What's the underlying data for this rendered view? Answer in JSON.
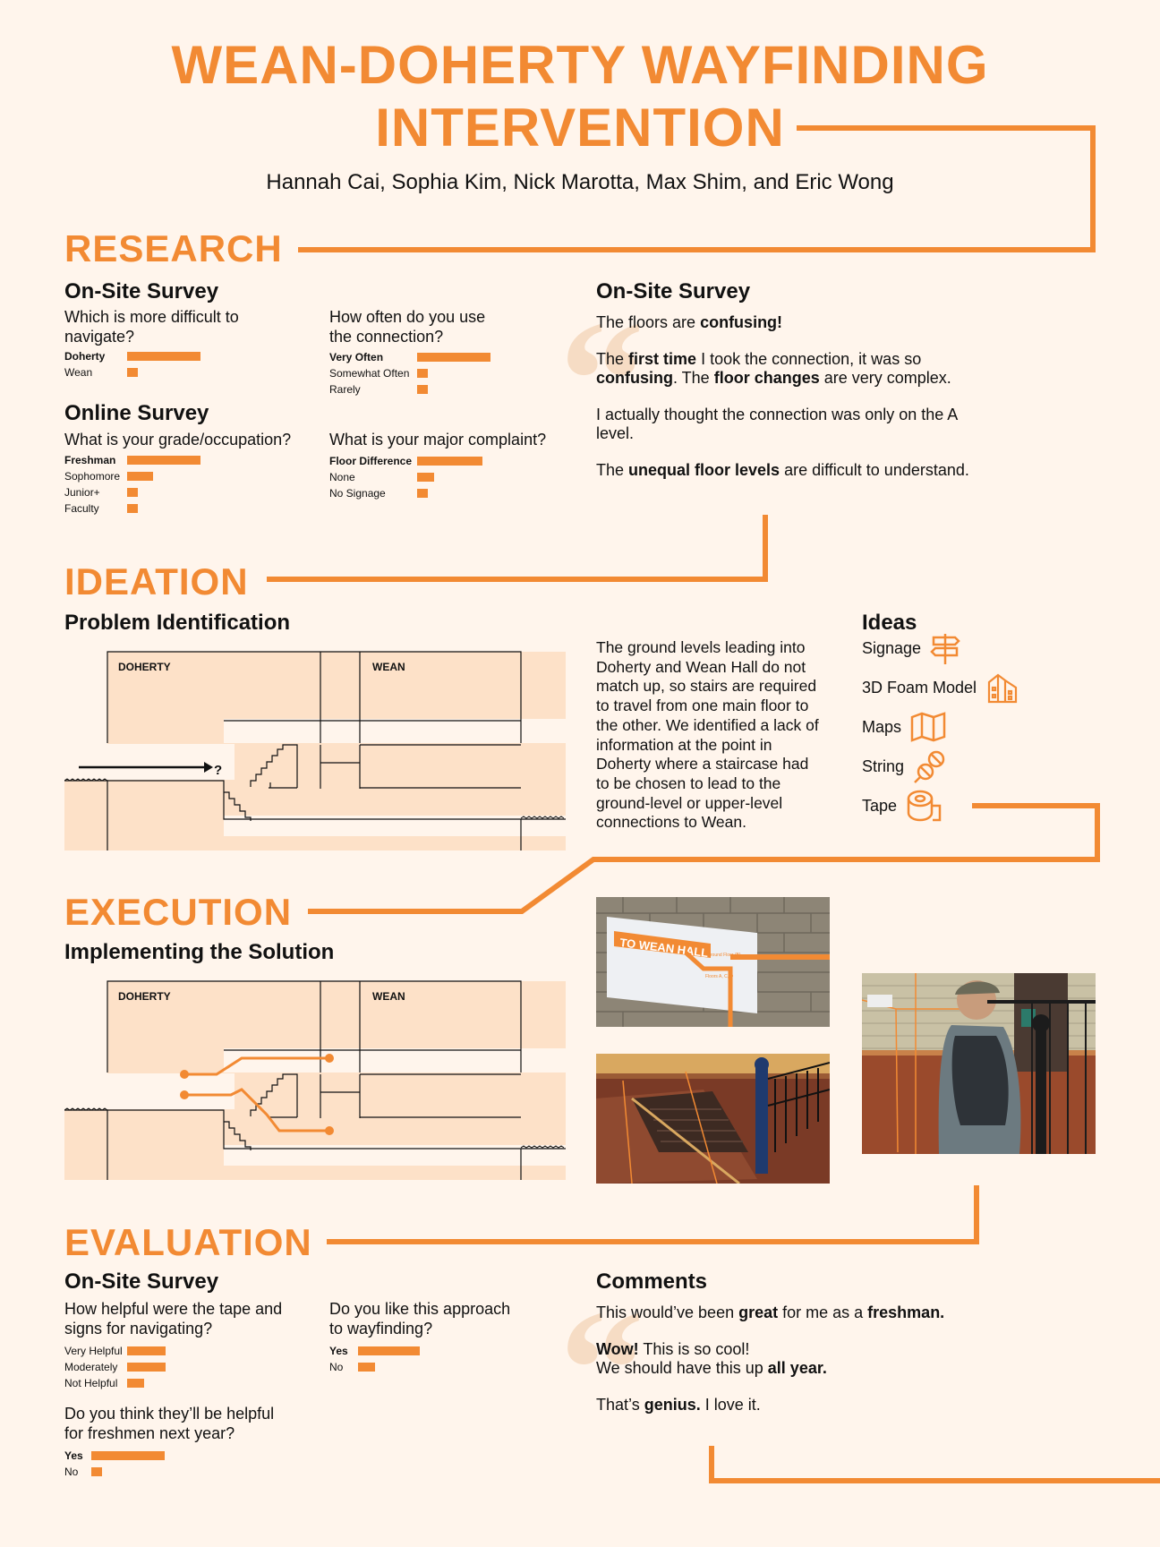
{
  "header": {
    "title_line1": "WEAN-DOHERTY WAYFINDING",
    "title_line2": "INTERVENTION",
    "authors": "Hannah Cai, Sophia Kim, Nick Marotta, Max Shim, and Eric Wong"
  },
  "colors": {
    "accent": "#f28a33",
    "background": "#fff5ec",
    "fill": "#fde1c8"
  },
  "research": {
    "heading": "RESEARCH",
    "onsite_heading": "On-Site Survey",
    "q1": {
      "text": "Which is more difficult to navigate?",
      "options": [
        {
          "label": "Doherty",
          "value": 0.85,
          "bold": true
        },
        {
          "label": "Wean",
          "value": 0.12,
          "bold": false
        }
      ]
    },
    "q2": {
      "text": "How often do you use the connection?",
      "options": [
        {
          "label": "Very Often",
          "value": 0.85,
          "bold": true
        },
        {
          "label": "Somewhat Often",
          "value": 0.12,
          "bold": false
        },
        {
          "label": "Rarely",
          "value": 0.12,
          "bold": false
        }
      ]
    },
    "online_heading": "Online Survey",
    "q3": {
      "text": "What is your grade/occupation?",
      "options": [
        {
          "label": "Freshman",
          "value": 0.85,
          "bold": true
        },
        {
          "label": "Sophomore",
          "value": 0.3,
          "bold": false
        },
        {
          "label": "Junior+",
          "value": 0.12,
          "bold": false
        },
        {
          "label": "Faculty",
          "value": 0.12,
          "bold": false
        }
      ]
    },
    "q4": {
      "text": "What is your major complaint?",
      "options": [
        {
          "label": "Floor Difference",
          "value": 0.76,
          "bold": true
        },
        {
          "label": "None",
          "value": 0.2,
          "bold": false
        },
        {
          "label": "No Signage",
          "value": 0.12,
          "bold": false
        }
      ]
    },
    "quotes_heading": "On-Site Survey",
    "quotes": [
      [
        {
          "t": "The floors are "
        },
        {
          "t": "confusing!",
          "b": true
        }
      ],
      [
        {
          "t": "The "
        },
        {
          "t": "first time",
          "b": true
        },
        {
          "t": " I took the connection, it was so "
        },
        {
          "t": "confusing",
          "b": true
        },
        {
          "t": ". The "
        },
        {
          "t": "floor changes",
          "b": true
        },
        {
          "t": " are very complex."
        }
      ],
      [
        {
          "t": "I actually thought the connection was only on the A level."
        }
      ],
      [
        {
          "t": "The "
        },
        {
          "t": "unequal floor levels",
          "b": true
        },
        {
          "t": " are difficult to understand."
        }
      ]
    ]
  },
  "ideation": {
    "heading": "IDEATION",
    "sub": "Problem Identification",
    "diagram": {
      "left_label": "DOHERTY",
      "right_label": "WEAN",
      "question_mark": "?"
    },
    "description": "The ground levels leading into Doherty and Wean Hall do not match up, so stairs are required to travel from one main floor to the other. We identified a lack of information at the point in Doherty where a staircase had to be chosen to lead to the ground-level or upper-level connections to Wean.",
    "ideas_heading": "Ideas",
    "ideas": [
      {
        "label": "Signage",
        "icon": "signpost-icon"
      },
      {
        "label": "3D Foam Model",
        "icon": "building-model-icon"
      },
      {
        "label": "Maps",
        "icon": "map-icon"
      },
      {
        "label": "String",
        "icon": "string-icon"
      },
      {
        "label": "Tape",
        "icon": "tape-icon"
      }
    ]
  },
  "execution": {
    "heading": "EXECUTION",
    "sub": "Implementing the Solution",
    "diagram": {
      "left_label": "DOHERTY",
      "right_label": "WEAN"
    },
    "sign_text": "TO WEAN HALL",
    "sign_small1": "Ground Floor (B)",
    "sign_small2": "Floors A, C, D"
  },
  "evaluation": {
    "heading": "EVALUATION",
    "onsite_heading": "On-Site Survey",
    "q1": {
      "text": "How helpful were the tape and signs for navigating?",
      "options": [
        {
          "label": "Very Helpful",
          "value": 0.45,
          "bold": false
        },
        {
          "label": "Moderately",
          "value": 0.45,
          "bold": false
        },
        {
          "label": "Not Helpful",
          "value": 0.2,
          "bold": false
        }
      ]
    },
    "q2": {
      "text": "Do you like this approach to wayfinding?",
      "options": [
        {
          "label": "Yes",
          "value": 0.72,
          "bold": true
        },
        {
          "label": "No",
          "value": 0.2,
          "bold": false
        }
      ]
    },
    "q3": {
      "text": "Do you think they’ll be helpful for freshmen next year?",
      "options": [
        {
          "label": "Yes",
          "value": 0.85,
          "bold": true
        },
        {
          "label": "No",
          "value": 0.12,
          "bold": false
        }
      ]
    },
    "comments_heading": "Comments",
    "comments": [
      [
        {
          "t": "This would’ve been "
        },
        {
          "t": "great",
          "b": true
        },
        {
          "t": " for me as a "
        },
        {
          "t": "freshman.",
          "b": true
        }
      ],
      [
        {
          "t": "Wow!",
          "b": true
        },
        {
          "t": " This is so cool!"
        },
        {
          "br": true
        },
        {
          "t": "We should have this up "
        },
        {
          "t": "all year.",
          "b": true
        }
      ],
      [
        {
          "t": "That’s "
        },
        {
          "t": "genius.",
          "b": true
        },
        {
          "t": " I love it."
        }
      ]
    ]
  }
}
